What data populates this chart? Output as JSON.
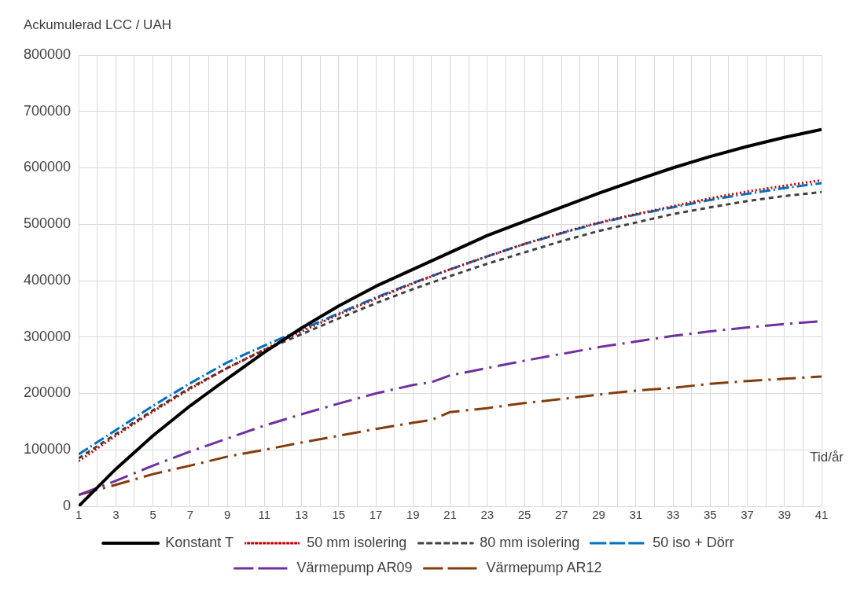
{
  "chart_data": {
    "type": "line",
    "ylabel": "Ackumulerad LCC / UAH",
    "xlabel": "Tid/år",
    "xlim": [
      1,
      41
    ],
    "xticks": [
      1,
      {
        "value": 2,
        "label": null
      },
      3,
      {
        "value": 4,
        "label": null
      },
      5,
      {
        "value": 6,
        "label": null
      },
      7,
      {
        "value": 8,
        "label": null
      },
      9,
      {
        "value": 10,
        "label": null
      },
      11,
      {
        "value": 12,
        "label": null
      },
      13,
      {
        "value": 14,
        "label": null
      },
      15,
      {
        "value": 16,
        "label": null
      },
      17,
      {
        "value": 18,
        "label": null
      },
      19,
      {
        "value": 20,
        "label": null
      },
      21,
      {
        "value": 22,
        "label": null
      },
      23,
      {
        "value": 24,
        "label": null
      },
      25,
      {
        "value": 26,
        "label": null
      },
      27,
      {
        "value": 28,
        "label": null
      },
      29,
      {
        "value": 30,
        "label": null
      },
      31,
      {
        "value": 32,
        "label": null
      },
      33,
      {
        "value": 34,
        "label": null
      },
      35,
      {
        "value": 36,
        "label": null
      },
      37,
      {
        "value": 38,
        "label": null
      },
      39,
      {
        "value": 40,
        "label": null
      },
      41
    ],
    "ylim": [
      0,
      800000
    ],
    "yticks": [
      0,
      100000,
      200000,
      300000,
      400000,
      500000,
      600000,
      700000,
      800000
    ],
    "grid": true,
    "legend": "bottom",
    "marker": "none",
    "x": [
      1,
      3,
      5,
      7,
      9,
      11,
      13,
      15,
      17,
      19,
      21,
      23,
      25,
      27,
      29,
      31,
      33,
      35,
      37,
      39,
      41
    ],
    "series": [
      {
        "name": "Konstant T",
        "color": "#000000",
        "line_style": "solid",
        "values": [
          0,
          66000,
          125000,
          178000,
          226000,
          273000,
          316000,
          355000,
          390000,
          420000,
          450000,
          480000,
          505000,
          530000,
          555000,
          578000,
          600000,
          620000,
          638000,
          654000,
          668000
        ]
      },
      {
        "name": "50 mm isolering",
        "color": "#c00000",
        "line_style": "dotted",
        "values": [
          80000,
          125000,
          168000,
          208000,
          245000,
          278000,
          310000,
          340000,
          368000,
          395000,
          420000,
          443000,
          465000,
          485000,
          503000,
          518000,
          532000,
          546000,
          558000,
          568000,
          578000
        ]
      },
      {
        "name": "80 mm isolering",
        "color": "#404040",
        "line_style": "dashed",
        "values": [
          85000,
          128000,
          170000,
          210000,
          245000,
          277000,
          305000,
          333000,
          360000,
          385000,
          408000,
          430000,
          450000,
          470000,
          488000,
          503000,
          518000,
          530000,
          541000,
          550000,
          557000
        ]
      },
      {
        "name": "50 iso + Dörr",
        "color": "#0070c0",
        "line_style": "dashdot",
        "values": [
          92000,
          135000,
          178000,
          218000,
          255000,
          285000,
          313000,
          342000,
          370000,
          396000,
          420000,
          443000,
          465000,
          484000,
          502000,
          517000,
          530000,
          543000,
          554000,
          564000,
          573000
        ]
      },
      {
        "name": "Värmepump AR09",
        "color": "#7030a0",
        "line_style": "longdashdot",
        "x": [
          1,
          3,
          5,
          7,
          9,
          11,
          13,
          15,
          17,
          19,
          20,
          21,
          23,
          25,
          27,
          29,
          31,
          33,
          35,
          37,
          39,
          41
        ],
        "values": [
          20000,
          45000,
          72000,
          97000,
          120000,
          143000,
          163000,
          182000,
          200000,
          215000,
          220000,
          232000,
          245000,
          258000,
          270000,
          282000,
          292000,
          302000,
          310000,
          317000,
          323000,
          328000
        ]
      },
      {
        "name": "Värmepump AR12",
        "color": "#843c0c",
        "line_style": "longdashdot",
        "x": [
          1,
          3,
          5,
          7,
          9,
          11,
          13,
          15,
          17,
          19,
          20,
          21,
          23,
          25,
          27,
          29,
          31,
          33,
          35,
          37,
          39,
          41
        ],
        "values": [
          20000,
          38000,
          57000,
          72000,
          88000,
          100000,
          113000,
          125000,
          137000,
          148000,
          153000,
          167000,
          174000,
          183000,
          190000,
          198000,
          205000,
          210000,
          217000,
          222000,
          226000,
          230000
        ]
      }
    ]
  }
}
